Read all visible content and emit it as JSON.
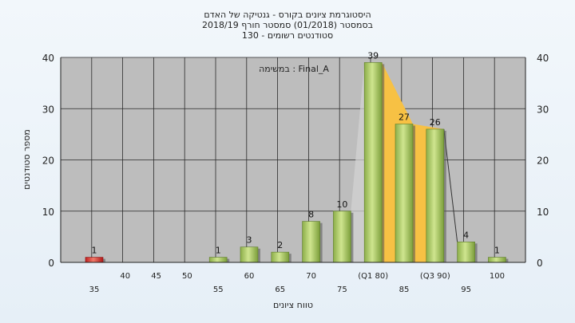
{
  "chart_data": {
    "type": "bar",
    "title_lines": [
      "היסטוגרמת ציונים בקורס - גנטיקה של האדם",
      "בסמסטר  (01/2018)  סמסטר חורף  2018/19",
      "סטודנטים רשומים - 130"
    ],
    "xlabel": "טווח ציונים",
    "ylabel": "מספר סטודנטים",
    "annotation": "במשימה : Final_A",
    "ylim": [
      0,
      40
    ],
    "yticks": [
      0,
      10,
      20,
      30,
      40
    ],
    "categories": [
      "35",
      "40",
      "45",
      "50",
      "55",
      "60",
      "65",
      "70",
      "75",
      "(Q1 80)",
      "85",
      "(Q3 90)",
      "95",
      "100"
    ],
    "category_label_rows": [
      0,
      1,
      1,
      1,
      0,
      1,
      0,
      1,
      0,
      1,
      0,
      1,
      0,
      1
    ],
    "values": [
      1,
      0,
      0,
      0,
      1,
      3,
      2,
      8,
      10,
      39,
      27,
      26,
      4,
      1
    ],
    "bar_colors": [
      "#cc2b2b",
      "#8fb846",
      "#8fb846",
      "#8fb846",
      "#8fb846",
      "#8fb846",
      "#8fb846",
      "#8fb846",
      "#8fb846",
      "#8fb846",
      "#8fb846",
      "#8fb846",
      "#8fb846",
      "#8fb846"
    ],
    "highlight_band": {
      "from_category": "(Q1 80)",
      "to_category": "(Q3 90)",
      "color": "#f7c144"
    },
    "grid": true,
    "plot_background": "#bdbdbd",
    "legend": "none"
  }
}
